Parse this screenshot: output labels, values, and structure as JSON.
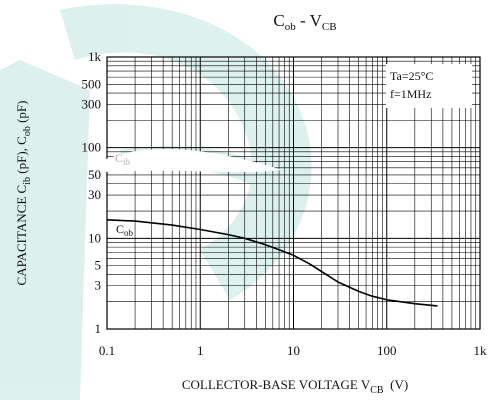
{
  "chart_data": {
    "type": "line",
    "title": {
      "main1": "C",
      "sub1": "ob",
      "dash": " - ",
      "main2": "V",
      "sub2": "CB"
    },
    "xlabel": {
      "text": "COLLECTOR-BASE VOLTAGE V",
      "sub": "CB",
      "unit": "  (V)"
    },
    "ylabel": {
      "p1": "CAPACITANCE C",
      "s1": "ib",
      "p2": " (pF), C",
      "s2": "ob",
      "p3": " (pF)"
    },
    "x_scale": "log",
    "y_scale": "log",
    "xlim": [
      0.1,
      1000
    ],
    "ylim": [
      1,
      1000
    ],
    "x_ticks": [
      {
        "v": 0.1,
        "label": "0.1"
      },
      {
        "v": 1,
        "label": "1"
      },
      {
        "v": 10,
        "label": "10"
      },
      {
        "v": 100,
        "label": "100"
      },
      {
        "v": 1000,
        "label": "1k"
      }
    ],
    "y_ticks": [
      {
        "v": 1,
        "label": "1"
      },
      {
        "v": 3,
        "label": "3"
      },
      {
        "v": 5,
        "label": "5"
      },
      {
        "v": 10,
        "label": "10"
      },
      {
        "v": 30,
        "label": "30"
      },
      {
        "v": 50,
        "label": "50"
      },
      {
        "v": 100,
        "label": "100"
      },
      {
        "v": 300,
        "label": "300"
      },
      {
        "v": 500,
        "label": "500"
      },
      {
        "v": 1000,
        "label": "1k"
      }
    ],
    "grid": true,
    "conditions": [
      "Ta=25°C",
      "f=1MHz"
    ],
    "series": [
      {
        "name": {
          "main": "C",
          "sub": "ob"
        },
        "x": [
          0.1,
          0.2,
          0.5,
          1,
          2,
          3,
          5,
          7,
          10,
          15,
          20,
          30,
          50,
          70,
          100,
          200,
          350
        ],
        "y": [
          16,
          15.5,
          14,
          12.5,
          11,
          10,
          8.5,
          7.5,
          6.5,
          5.2,
          4.3,
          3.3,
          2.6,
          2.3,
          2.1,
          1.9,
          1.8
        ]
      },
      {
        "name": {
          "main": "C",
          "sub": "ib"
        },
        "x": [],
        "y": []
      }
    ]
  }
}
